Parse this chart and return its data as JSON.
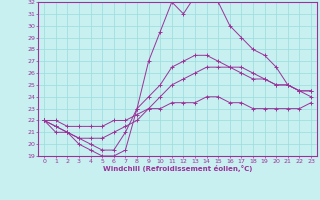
{
  "xlabel": "Windchill (Refroidissement éolien,°C)",
  "xlim": [
    -0.5,
    23.5
  ],
  "ylim": [
    19,
    32
  ],
  "xticks": [
    0,
    1,
    2,
    3,
    4,
    5,
    6,
    7,
    8,
    9,
    10,
    11,
    12,
    13,
    14,
    15,
    16,
    17,
    18,
    19,
    20,
    21,
    22,
    23
  ],
  "yticks": [
    19,
    20,
    21,
    22,
    23,
    24,
    25,
    26,
    27,
    28,
    29,
    30,
    31,
    32
  ],
  "bg_color": "#c8f0f0",
  "line_color": "#993399",
  "grid_color": "#99dddd",
  "lines": [
    {
      "x": [
        0,
        1,
        2,
        3,
        4,
        5,
        6,
        7,
        8,
        9,
        10,
        11,
        12,
        13,
        14,
        15,
        16,
        17,
        18,
        19,
        20,
        21,
        22,
        23
      ],
      "y": [
        22,
        21,
        21,
        20,
        19.5,
        19,
        19,
        19.5,
        23,
        27,
        29.5,
        32,
        31,
        32.5,
        32.5,
        32,
        30,
        29,
        28,
        27.5,
        26.5,
        25,
        24.5,
        24.5
      ]
    },
    {
      "x": [
        0,
        1,
        2,
        3,
        4,
        5,
        6,
        7,
        8,
        9,
        10,
        11,
        12,
        13,
        14,
        15,
        16,
        17,
        18,
        19,
        20,
        21,
        22,
        23
      ],
      "y": [
        22,
        21.5,
        21,
        20.5,
        20,
        19.5,
        19.5,
        21,
        23,
        24,
        25,
        26.5,
        27,
        27.5,
        27.5,
        27,
        26.5,
        26,
        25.5,
        25.5,
        25,
        25,
        24.5,
        24.5
      ]
    },
    {
      "x": [
        0,
        1,
        2,
        3,
        4,
        5,
        6,
        7,
        8,
        9,
        10,
        11,
        12,
        13,
        14,
        15,
        16,
        17,
        18,
        19,
        20,
        21,
        22,
        23
      ],
      "y": [
        22,
        21.5,
        21,
        20.5,
        20.5,
        20.5,
        21,
        21.5,
        22,
        23,
        24,
        25,
        25.5,
        26,
        26.5,
        26.5,
        26.5,
        26.5,
        26,
        25.5,
        25,
        25,
        24.5,
        24
      ]
    },
    {
      "x": [
        0,
        1,
        2,
        3,
        4,
        5,
        6,
        7,
        8,
        9,
        10,
        11,
        12,
        13,
        14,
        15,
        16,
        17,
        18,
        19,
        20,
        21,
        22,
        23
      ],
      "y": [
        22,
        22,
        21.5,
        21.5,
        21.5,
        21.5,
        22,
        22,
        22.5,
        23,
        23,
        23.5,
        23.5,
        23.5,
        24,
        24,
        23.5,
        23.5,
        23,
        23,
        23,
        23,
        23,
        23.5
      ]
    }
  ]
}
